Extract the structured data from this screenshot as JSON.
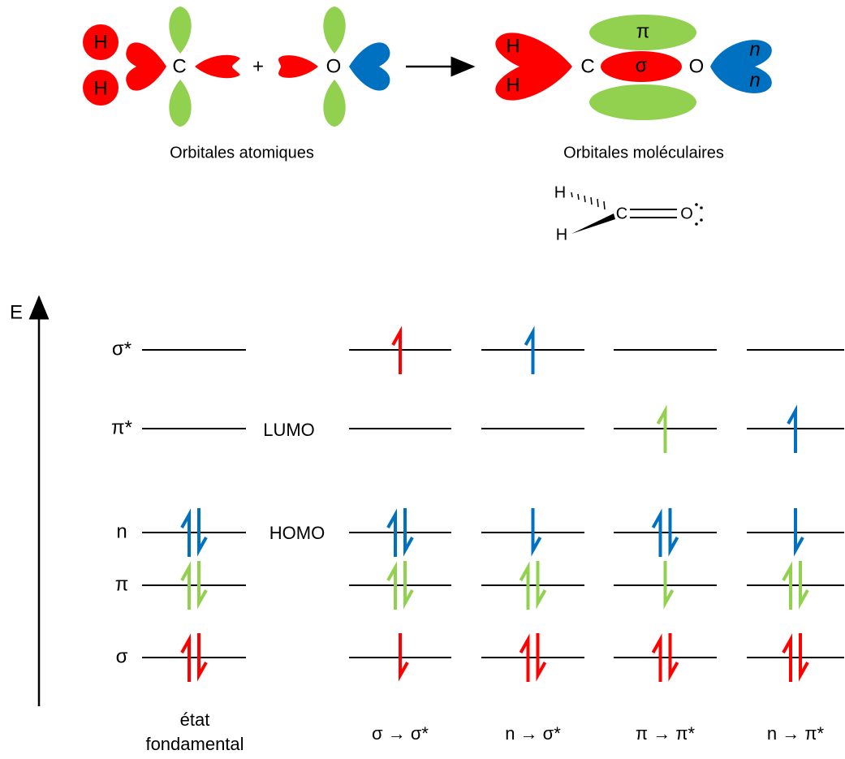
{
  "reaction": {
    "left": {
      "h1": "H",
      "h2": "H",
      "c": "C",
      "plus": "+",
      "o": "O"
    },
    "right": {
      "h1": "H",
      "h2": "H",
      "c": "C",
      "pi": "π",
      "sigma": "σ",
      "o": "O",
      "n1": "n",
      "n2": "n"
    },
    "caption_left": "Orbitales atomiques",
    "caption_right": "Orbitales moléculaires"
  },
  "structure": {
    "h_top": "H",
    "h_bottom": "H",
    "c": "C",
    "o": "O"
  },
  "diagram": {
    "axis_label": "E",
    "levels": [
      "σ*",
      "π*",
      "n",
      "π",
      "σ"
    ],
    "lumo": "LUMO",
    "homo": "HOMO",
    "columns": [
      {
        "label_lines": [
          "état",
          "fondamental"
        ]
      },
      {
        "label_lines": [
          "σ → σ*"
        ]
      },
      {
        "label_lines": [
          "n → σ*"
        ]
      },
      {
        "label_lines": [
          "π → π*"
        ]
      },
      {
        "label_lines": [
          "n → π*"
        ]
      }
    ]
  }
}
